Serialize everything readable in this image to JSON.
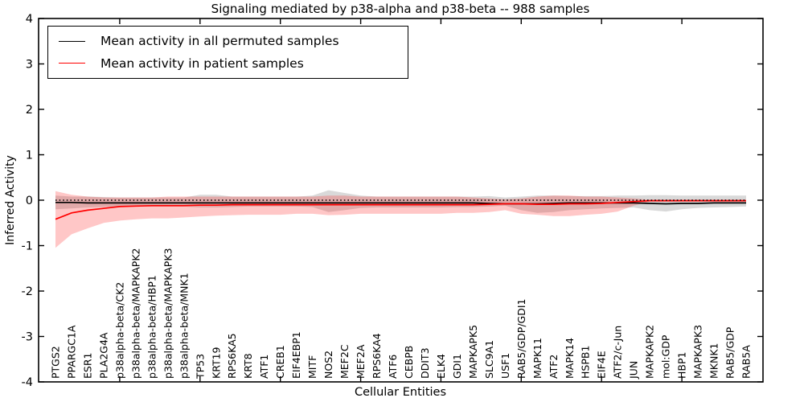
{
  "chart_data": {
    "type": "line",
    "title": "Signaling mediated by p38-alpha and p38-beta -- 988 samples",
    "xlabel": "Cellular Entities",
    "ylabel": "Inferred Activity",
    "ylim": [
      -4,
      4
    ],
    "yticks": [
      -4,
      -3,
      -2,
      -1,
      0,
      1,
      2,
      3,
      4
    ],
    "x_major_tick_indices": [
      4,
      9,
      14,
      19,
      24,
      29,
      34,
      39
    ],
    "grid": false,
    "zero_line": {
      "value": 0,
      "style": "dotted",
      "color": "#000000"
    },
    "legend": {
      "position": "upper-left",
      "entries": [
        {
          "label": "Mean activity in all permuted samples",
          "color": "#000000"
        },
        {
          "label": "Mean activity in patient samples",
          "color": "#ff0000"
        }
      ]
    },
    "categories": [
      "PTGS2",
      "PPARGC1A",
      "ESR1",
      "PLA2G4A",
      "p38alpha-beta/CK2",
      "p38alpha-beta/MAPKAPK2",
      "p38alpha-beta/HBP1",
      "p38alpha-beta/MAPKAPK3",
      "p38alpha-beta/MNK1",
      "TP53",
      "KRT19",
      "RPS6KA5",
      "KRT8",
      "ATF1",
      "CREB1",
      "EIF4EBP1",
      "MITF",
      "NOS2",
      "MEF2C",
      "MEF2A",
      "RPS6KA4",
      "ATF6",
      "CEBPB",
      "DDIT3",
      "ELK4",
      "GDI1",
      "MAPKAPK5",
      "SLC9A1",
      "USF1",
      "RAB5/GDP/GDI1",
      "MAPK11",
      "ATF2",
      "MAPK14",
      "HSPB1",
      "EIF4E",
      "ATF2/c-Jun",
      "JUN",
      "MAPKAPK2",
      "mol:GDP",
      "HBP1",
      "MAPKAPK3",
      "MKNK1",
      "RAB5/GDP",
      "RAB5A"
    ],
    "series": [
      {
        "name": "Permuted samples confidence band",
        "type": "band",
        "color": "#808080",
        "opacity": 0.3,
        "upper": [
          0.1,
          0.08,
          0.08,
          0.07,
          0.06,
          0.06,
          0.06,
          0.06,
          0.06,
          0.12,
          0.12,
          0.08,
          0.08,
          0.08,
          0.08,
          0.08,
          0.1,
          0.22,
          0.16,
          0.1,
          0.08,
          0.08,
          0.08,
          0.08,
          0.08,
          0.08,
          0.08,
          0.09,
          0.06,
          0.08,
          0.1,
          0.1,
          0.09,
          0.09,
          0.09,
          0.1,
          0.1,
          0.11,
          0.11,
          0.1,
          0.1,
          0.1,
          0.1,
          0.1
        ],
        "lower": [
          -0.2,
          -0.18,
          -0.16,
          -0.15,
          -0.14,
          -0.14,
          -0.14,
          -0.14,
          -0.14,
          -0.16,
          -0.16,
          -0.15,
          -0.14,
          -0.14,
          -0.14,
          -0.14,
          -0.15,
          -0.26,
          -0.22,
          -0.17,
          -0.16,
          -0.16,
          -0.16,
          -0.16,
          -0.16,
          -0.15,
          -0.15,
          -0.14,
          -0.12,
          -0.22,
          -0.28,
          -0.26,
          -0.22,
          -0.2,
          -0.18,
          -0.17,
          -0.16,
          -0.22,
          -0.25,
          -0.2,
          -0.17,
          -0.16,
          -0.15,
          -0.14
        ]
      },
      {
        "name": "Patient samples confidence band",
        "type": "band",
        "color": "#ff0000",
        "opacity": 0.22,
        "upper": [
          0.2,
          0.12,
          0.08,
          0.06,
          0.06,
          0.06,
          0.06,
          0.08,
          0.08,
          0.08,
          0.08,
          0.08,
          0.08,
          0.08,
          0.08,
          0.08,
          0.08,
          0.1,
          0.1,
          0.08,
          0.08,
          0.08,
          0.08,
          0.08,
          0.08,
          0.08,
          0.06,
          0.04,
          0.02,
          0.04,
          0.08,
          0.1,
          0.1,
          0.08,
          0.08,
          0.06,
          0.04,
          0.01,
          0.01,
          0.01,
          0.01,
          0.01,
          0.01,
          0.01
        ],
        "lower": [
          -1.05,
          -0.75,
          -0.62,
          -0.5,
          -0.45,
          -0.42,
          -0.4,
          -0.4,
          -0.38,
          -0.36,
          -0.34,
          -0.33,
          -0.32,
          -0.32,
          -0.32,
          -0.3,
          -0.3,
          -0.33,
          -0.32,
          -0.3,
          -0.3,
          -0.3,
          -0.3,
          -0.3,
          -0.3,
          -0.28,
          -0.28,
          -0.26,
          -0.22,
          -0.3,
          -0.32,
          -0.35,
          -0.35,
          -0.32,
          -0.3,
          -0.25,
          -0.12,
          -0.03,
          -0.03,
          -0.03,
          -0.03,
          -0.03,
          -0.03,
          -0.03
        ]
      },
      {
        "name": "Mean activity in all permuted samples",
        "type": "line",
        "color": "#000000",
        "width": 1.7,
        "values": [
          -0.05,
          -0.05,
          -0.06,
          -0.06,
          -0.06,
          -0.06,
          -0.06,
          -0.06,
          -0.06,
          -0.06,
          -0.06,
          -0.06,
          -0.06,
          -0.06,
          -0.06,
          -0.06,
          -0.06,
          -0.06,
          -0.06,
          -0.06,
          -0.06,
          -0.06,
          -0.06,
          -0.06,
          -0.06,
          -0.06,
          -0.06,
          -0.07,
          -0.08,
          -0.08,
          -0.08,
          -0.07,
          -0.06,
          -0.06,
          -0.06,
          -0.06,
          -0.06,
          -0.07,
          -0.08,
          -0.07,
          -0.07,
          -0.06,
          -0.06,
          -0.06
        ]
      },
      {
        "name": "Mean activity in patient samples",
        "type": "line",
        "color": "#ff0000",
        "width": 1.7,
        "values": [
          -0.42,
          -0.28,
          -0.22,
          -0.18,
          -0.14,
          -0.13,
          -0.12,
          -0.12,
          -0.12,
          -0.11,
          -0.11,
          -0.1,
          -0.1,
          -0.1,
          -0.1,
          -0.1,
          -0.1,
          -0.1,
          -0.1,
          -0.1,
          -0.1,
          -0.1,
          -0.1,
          -0.1,
          -0.1,
          -0.1,
          -0.1,
          -0.09,
          -0.08,
          -0.08,
          -0.09,
          -0.09,
          -0.08,
          -0.08,
          -0.07,
          -0.05,
          -0.03,
          -0.01,
          -0.01,
          -0.01,
          -0.01,
          -0.01,
          -0.01,
          -0.01
        ]
      }
    ]
  }
}
